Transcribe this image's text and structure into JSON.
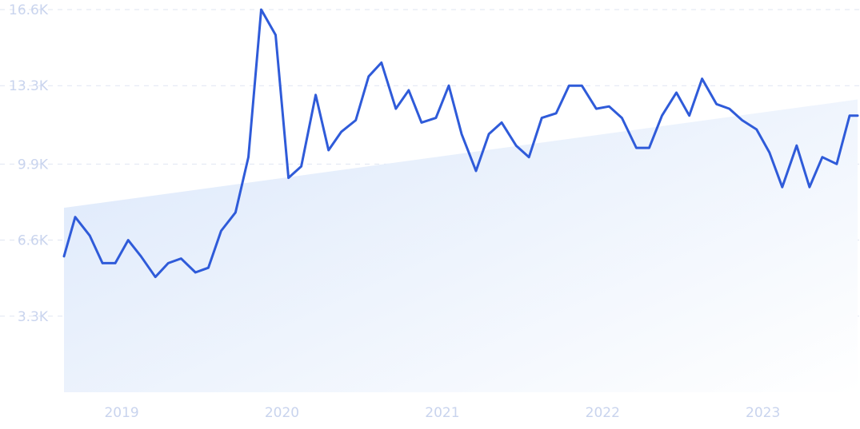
{
  "chart_data": {
    "type": "line",
    "y_tick_labels": [
      "16.6K",
      "13.3K",
      "9.9K",
      "6.6K",
      "3.3K"
    ],
    "y_ticks": [
      16600,
      13300,
      9900,
      6600,
      3300
    ],
    "x_tick_labels": [
      "2019",
      "2020",
      "2021",
      "2022",
      "2023"
    ],
    "x_ticks": [
      2019.0,
      2020.0,
      2021.0,
      2022.0,
      2023.0
    ],
    "xlim": [
      2018.81,
      2023.76
    ],
    "ylim": [
      0,
      16600
    ],
    "grid": true,
    "legend": "none",
    "colors": {
      "line": "#2f5bd9",
      "trend_fill_start": "#dfeafb",
      "trend_fill_end": "#ffffff",
      "tick_text": "#c9d4ee",
      "grid": "#dfe5f2"
    },
    "series": [
      {
        "x": [
          2018.81,
          2018.88,
          2018.97,
          2019.05,
          2019.13,
          2019.21,
          2019.29,
          2019.38,
          2019.46,
          2019.54,
          2019.63,
          2019.71,
          2019.79,
          2019.88,
          2019.96,
          2020.04,
          2020.13,
          2020.21,
          2020.29,
          2020.38,
          2020.46,
          2020.54,
          2020.63,
          2020.71,
          2020.79,
          2020.88,
          2020.96,
          2021.04,
          2021.13,
          2021.21,
          2021.29,
          2021.38,
          2021.46,
          2021.54,
          2021.63,
          2021.71,
          2021.79,
          2021.88,
          2021.96,
          2022.04,
          2022.13,
          2022.21,
          2022.29,
          2022.38,
          2022.46,
          2022.54,
          2022.63,
          2022.71,
          2022.79,
          2022.88,
          2022.96,
          2023.04,
          2023.13,
          2023.21,
          2023.29,
          2023.38,
          2023.46,
          2023.54,
          2023.63,
          2023.71,
          2023.76
        ],
        "y": [
          5900,
          7600,
          6800,
          5600,
          5600,
          6600,
          5900,
          5000,
          5600,
          5800,
          5200,
          5400,
          7000,
          7800,
          10200,
          16600,
          15500,
          9300,
          9800,
          12900,
          10500,
          11300,
          11800,
          13700,
          14300,
          12300,
          13100,
          11700,
          11900,
          13300,
          11200,
          9600,
          11200,
          11700,
          10700,
          10200,
          11900,
          12100,
          13300,
          13300,
          12300,
          12400,
          11900,
          10600,
          10600,
          12000,
          13000,
          12000,
          13600,
          12500,
          12300,
          11800,
          11400,
          10400,
          8900,
          10700,
          8900,
          10200,
          9900,
          12000,
          12000
        ]
      }
    ],
    "trend": {
      "x": [
        2018.81,
        2023.76
      ],
      "y": [
        8000,
        12700
      ]
    }
  }
}
